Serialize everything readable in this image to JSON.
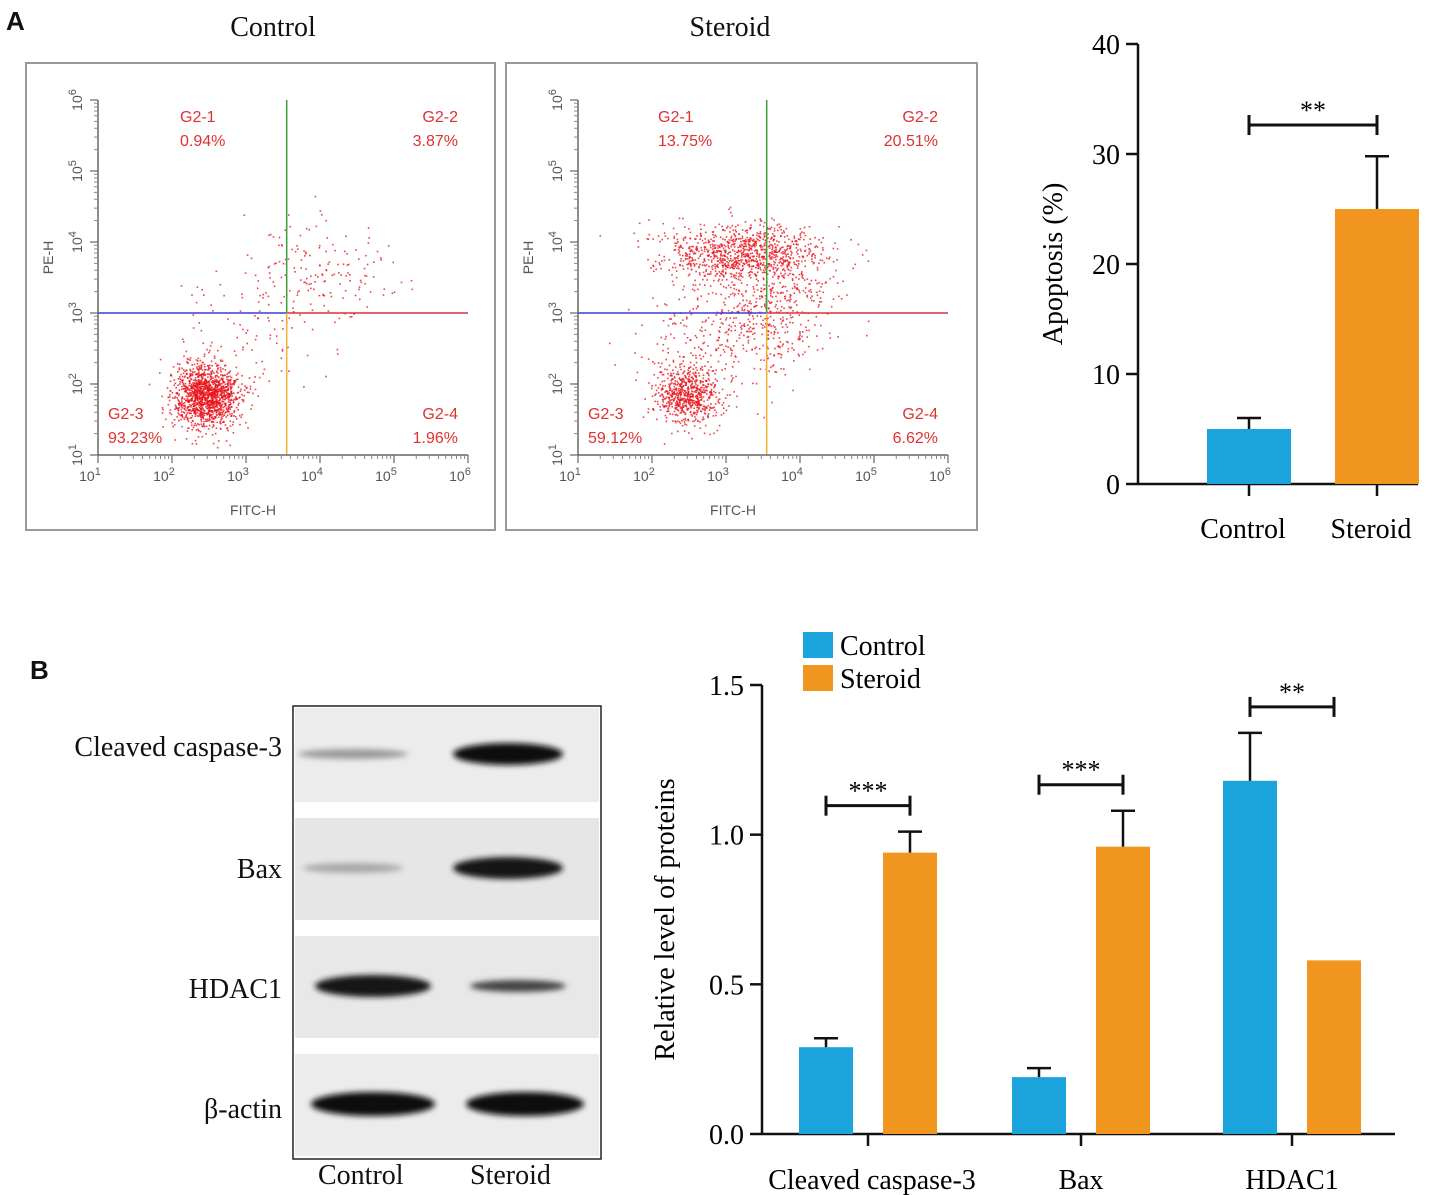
{
  "panel_a_label": "A",
  "panel_b_label": "B",
  "flow_plots": [
    {
      "title": "Control",
      "x_axis_label": "FITC-H",
      "y_axis_label": "PE-H",
      "quadrants": [
        {
          "gate": "G2-1",
          "value": "0.94%"
        },
        {
          "gate": "G2-2",
          "value": "3.87%"
        },
        {
          "gate": "G2-3",
          "value": "93.23%"
        },
        {
          "gate": "G2-4",
          "value": "1.96%"
        }
      ],
      "ticks": [
        "10",
        "10",
        "10",
        "10",
        "10",
        "10"
      ],
      "tick_exponents": [
        "1",
        "2",
        "3",
        "4",
        "5",
        "6"
      ]
    },
    {
      "title": "Steroid",
      "x_axis_label": "FITC-H",
      "y_axis_label": "PE-H",
      "quadrants": [
        {
          "gate": "G2-1",
          "value": "13.75%"
        },
        {
          "gate": "G2-2",
          "value": "20.51%"
        },
        {
          "gate": "G2-3",
          "value": "59.12%"
        },
        {
          "gate": "G2-4",
          "value": "6.62%"
        }
      ],
      "ticks": [
        "10",
        "10",
        "10",
        "10",
        "10",
        "10"
      ],
      "tick_exponents": [
        "1",
        "2",
        "3",
        "4",
        "5",
        "6"
      ]
    }
  ],
  "western_blot": {
    "rows": [
      "Cleaved caspase-3",
      "Bax",
      "HDAC1",
      "β-actin"
    ],
    "lanes": [
      "Control",
      "Steroid"
    ]
  },
  "colors": {
    "control": "#1ba3dc",
    "steroid": "#f0961e",
    "scatter": "#e8141c",
    "quad_blue": "#3a3ad8",
    "quad_red": "#e03030",
    "quad_green": "#3aa03a",
    "quad_yellow": "#f0b030"
  },
  "chart_data": [
    {
      "type": "bar",
      "categories": [
        "Control",
        "Steroid"
      ],
      "values": [
        5.0,
        25.0
      ],
      "errors": [
        1.0,
        4.8
      ],
      "ylabel": "Apoptosis (%)",
      "ylim": [
        0,
        40
      ],
      "yticks": [
        "0",
        "10",
        "20",
        "30",
        "40"
      ],
      "significance": "**"
    },
    {
      "type": "bar",
      "categories": [
        "Cleaved caspase-3",
        "Bax",
        "HDAC1"
      ],
      "series": [
        {
          "name": "Control",
          "values": [
            0.29,
            0.19,
            1.18
          ],
          "errors": [
            0.03,
            0.03,
            0.16
          ]
        },
        {
          "name": "Steroid",
          "values": [
            0.94,
            0.96,
            0.58
          ],
          "errors": [
            0.07,
            0.12,
            0.0
          ]
        }
      ],
      "ylabel": "Relative level of proteins",
      "ylim": [
        0,
        1.5
      ],
      "yticks": [
        "0.0",
        "0.5",
        "1.0",
        "1.5"
      ],
      "significance": [
        "***",
        "***",
        "**"
      ],
      "legend": "top-left"
    }
  ]
}
